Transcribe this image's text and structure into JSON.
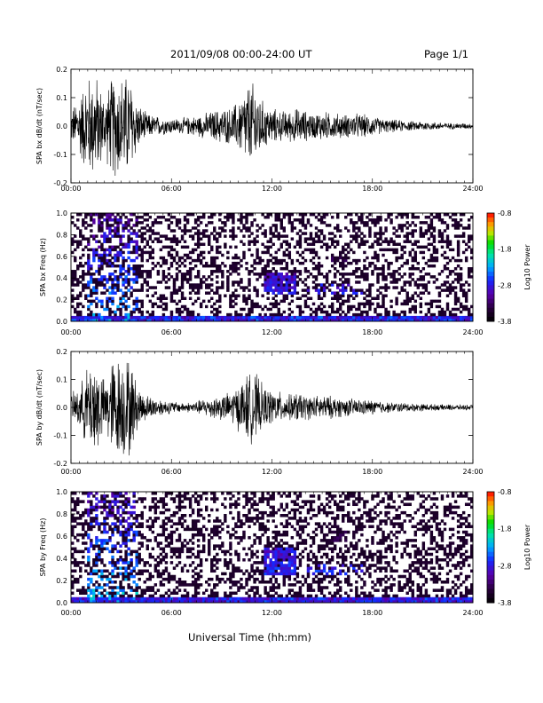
{
  "header": {
    "title": "2011/09/08  00:00-24:00 UT",
    "page": "Page 1/1"
  },
  "footer": {
    "xlabel": "Universal Time (hh:mm)"
  },
  "chart_data": [
    {
      "type": "line",
      "title": "",
      "ylabel": "SPA bx dB/dt (nT/sec)",
      "xlabel": "",
      "xlim": [
        "00:00",
        "24:00"
      ],
      "ylim": [
        -0.2,
        0.2
      ],
      "xticks": [
        "00:00",
        "06:00",
        "12:00",
        "18:00",
        "24:00"
      ],
      "yticks": [
        "-0.2",
        "-0.1",
        "0.0",
        "0.1",
        "0.2"
      ],
      "x_hours": [
        0,
        0.5,
        1,
        1.5,
        2,
        2.5,
        3,
        3.5,
        4,
        4.5,
        5,
        5.5,
        6,
        6.5,
        7,
        7.5,
        8,
        8.5,
        9,
        9.5,
        10,
        10.5,
        11,
        11.5,
        12,
        12.5,
        13,
        13.5,
        14,
        14.5,
        15,
        15.5,
        16,
        16.5,
        17,
        17.5,
        18,
        18.5,
        19,
        19.5,
        20,
        20.5,
        21,
        21.5,
        22,
        22.5,
        23,
        23.5,
        24
      ],
      "envelope": [
        0.06,
        0.12,
        0.2,
        0.2,
        0.12,
        0.2,
        0.2,
        0.2,
        0.09,
        0.05,
        0.04,
        0.035,
        0.03,
        0.03,
        0.035,
        0.04,
        0.05,
        0.06,
        0.07,
        0.07,
        0.1,
        0.16,
        0.17,
        0.09,
        0.07,
        0.06,
        0.06,
        0.07,
        0.06,
        0.05,
        0.06,
        0.05,
        0.05,
        0.045,
        0.05,
        0.045,
        0.04,
        0.03,
        0.025,
        0.025,
        0.02,
        0.018,
        0.02,
        0.015,
        0.015,
        0.012,
        0.012,
        0.012,
        0.01
      ],
      "grid": false
    },
    {
      "type": "heatmap",
      "title": "",
      "ylabel": "SPA bx Freq (Hz)",
      "xlabel": "",
      "xlim": [
        "00:00",
        "24:00"
      ],
      "ylim": [
        0.0,
        1.0
      ],
      "xticks": [
        "00:00",
        "06:00",
        "12:00",
        "18:00",
        "24:00"
      ],
      "yticks": [
        "0.0",
        "0.2",
        "0.4",
        "0.6",
        "0.8",
        "1.0"
      ],
      "colorbar": {
        "label": "Log10 Power",
        "ticks": [
          "-0.8",
          "-1.8",
          "-2.8",
          "-3.8"
        ],
        "range": [
          -3.8,
          -0.8
        ]
      },
      "features": [
        {
          "t_hours": [
            1.0,
            4.0
          ],
          "f_hz": [
            0.0,
            1.0
          ],
          "log_power": -2.3
        },
        {
          "t_hours": [
            11.5,
            13.5
          ],
          "f_hz": [
            0.25,
            0.45
          ],
          "log_power": -2.6
        },
        {
          "t_hours": [
            14.0,
            17.5
          ],
          "f_hz": [
            0.25,
            0.35
          ],
          "log_power": -2.6
        },
        {
          "t_hours": [
            15.5,
            16.5
          ],
          "f_hz": [
            0.55,
            0.6
          ],
          "log_power": -3.0
        }
      ]
    },
    {
      "type": "line",
      "title": "",
      "ylabel": "SPA by dB/dt (nT/sec)",
      "xlabel": "",
      "xlim": [
        "00:00",
        "24:00"
      ],
      "ylim": [
        -0.2,
        0.2
      ],
      "xticks": [
        "00:00",
        "06:00",
        "12:00",
        "18:00",
        "24:00"
      ],
      "yticks": [
        "-0.2",
        "-0.1",
        "0.0",
        "0.1",
        "0.2"
      ],
      "x_hours": [
        0,
        0.5,
        1,
        1.5,
        2,
        2.5,
        3,
        3.5,
        4,
        4.5,
        5,
        5.5,
        6,
        6.5,
        7,
        7.5,
        8,
        8.5,
        9,
        9.5,
        10,
        10.5,
        11,
        11.5,
        12,
        12.5,
        13,
        13.5,
        14,
        14.5,
        15,
        15.5,
        16,
        16.5,
        17,
        17.5,
        18,
        18.5,
        19,
        19.5,
        20,
        20.5,
        21,
        21.5,
        22,
        22.5,
        23,
        23.5,
        24
      ],
      "envelope": [
        0.05,
        0.08,
        0.16,
        0.2,
        0.1,
        0.2,
        0.2,
        0.2,
        0.08,
        0.05,
        0.04,
        0.03,
        0.025,
        0.02,
        0.02,
        0.025,
        0.035,
        0.045,
        0.05,
        0.06,
        0.09,
        0.13,
        0.14,
        0.08,
        0.07,
        0.06,
        0.05,
        0.06,
        0.05,
        0.045,
        0.05,
        0.045,
        0.04,
        0.035,
        0.035,
        0.03,
        0.03,
        0.025,
        0.02,
        0.02,
        0.018,
        0.016,
        0.015,
        0.013,
        0.012,
        0.012,
        0.011,
        0.011,
        0.01
      ],
      "grid": false
    },
    {
      "type": "heatmap",
      "title": "",
      "ylabel": "SPA by Freq (Hz)",
      "xlabel": "",
      "xlim": [
        "00:00",
        "24:00"
      ],
      "ylim": [
        0.0,
        1.0
      ],
      "xticks": [
        "00:00",
        "06:00",
        "12:00",
        "18:00",
        "24:00"
      ],
      "yticks": [
        "0.0",
        "0.2",
        "0.4",
        "0.6",
        "0.8",
        "1.0"
      ],
      "colorbar": {
        "label": "Log10 Power",
        "ticks": [
          "-0.8",
          "-1.8",
          "-2.8",
          "-3.8"
        ],
        "range": [
          -3.8,
          -0.8
        ]
      },
      "features": [
        {
          "t_hours": [
            1.0,
            4.0
          ],
          "f_hz": [
            0.0,
            1.0
          ],
          "log_power": -2.2
        },
        {
          "t_hours": [
            11.5,
            13.5
          ],
          "f_hz": [
            0.25,
            0.5
          ],
          "log_power": -2.5
        },
        {
          "t_hours": [
            14.0,
            17.5
          ],
          "f_hz": [
            0.25,
            0.35
          ],
          "log_power": -2.5
        },
        {
          "t_hours": [
            15.5,
            16.5
          ],
          "f_hz": [
            0.55,
            0.65
          ],
          "log_power": -3.0
        }
      ]
    }
  ]
}
